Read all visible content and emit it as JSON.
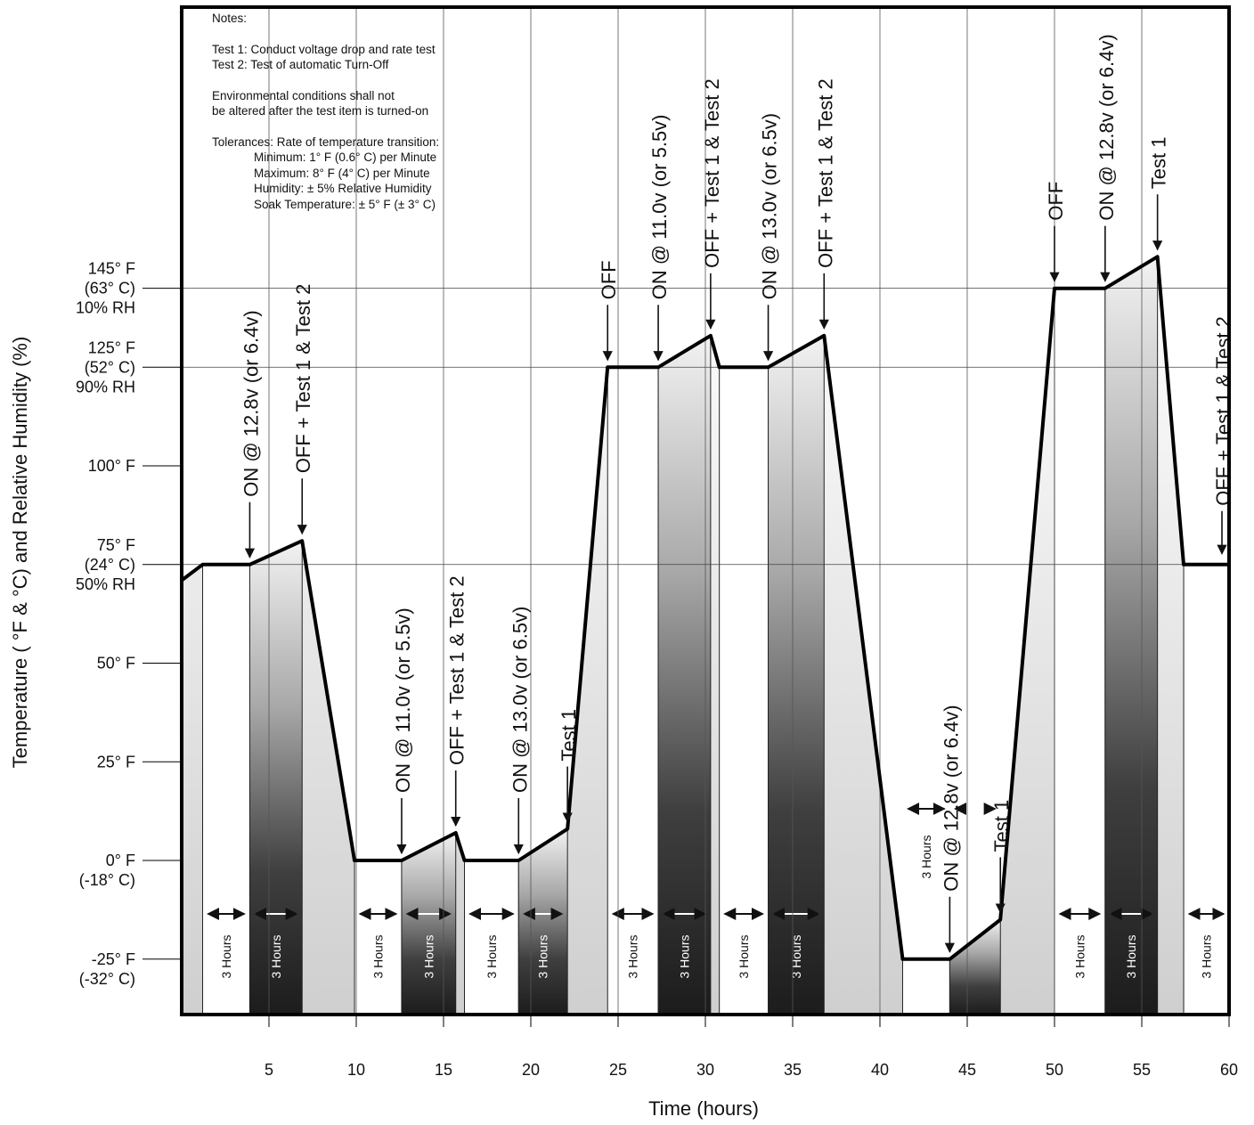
{
  "notes": {
    "title": "Notes:",
    "test1": "Test 1: Conduct voltage drop and rate test",
    "test2": "Test 2: Test of automatic Turn-Off",
    "env1": "Environmental conditions shall not",
    "env2": "be altered after the test item is turned-on",
    "tol_head": "Tolerances: Rate of temperature transition:",
    "tol_min": "Minimum: 1° F (0.6° C) per Minute",
    "tol_max": "Maximum: 8° F (4° C) per Minute",
    "tol_hum": "Humidity: ± 5% Relative Humidity",
    "tol_soak": "Soak Temperature: ± 5° F (± 3° C)"
  },
  "chart_data": {
    "type": "line",
    "xlabel": "Time (hours)",
    "ylabel": "Temperature ( °F & °C) and Relative Humidity (%)",
    "xlim": [
      0,
      60
    ],
    "ylim": [
      -32,
      150
    ],
    "x_ticks": [
      5,
      10,
      15,
      20,
      25,
      30,
      35,
      40,
      45,
      50,
      55,
      60
    ],
    "x_tick_labels": [
      "5",
      "10",
      "15",
      "20",
      "25",
      "30",
      "35",
      "40",
      "45",
      "50",
      "55",
      "60"
    ],
    "y_ticks": [
      {
        "value": 145,
        "lines": [
          "145° F",
          "(63° C)",
          "10% RH"
        ]
      },
      {
        "value": 125,
        "lines": [
          "125° F",
          "(52° C)",
          "90% RH"
        ]
      },
      {
        "value": 100,
        "lines": [
          "100° F"
        ]
      },
      {
        "value": 75,
        "lines": [
          "75° F",
          "(24° C)",
          "50% RH"
        ]
      },
      {
        "value": 50,
        "lines": [
          "50° F"
        ]
      },
      {
        "value": 25,
        "lines": [
          "25° F"
        ]
      },
      {
        "value": 0,
        "lines": [
          "0° F",
          "(-18° C)"
        ]
      },
      {
        "value": -25,
        "lines": [
          "-25° F",
          "(-32° C)"
        ]
      }
    ],
    "series": [
      {
        "x": [
          0,
          1.2,
          3.9,
          6.9,
          9.9,
          12.6,
          15.7,
          16.2,
          19.3,
          22.1,
          24.4,
          27.3,
          30.3,
          30.8,
          33.6,
          36.8,
          41.3,
          44,
          46.9,
          50,
          52.9,
          55.9,
          57.4,
          60
        ],
        "y": [
          71,
          75,
          75,
          81,
          0,
          0,
          7,
          0,
          0,
          8,
          125,
          125,
          133,
          125,
          125,
          133,
          -25,
          -25,
          -15,
          145,
          145,
          153,
          75,
          75
        ]
      }
    ],
    "phases": [
      {
        "x0": 1.2,
        "x1": 3.9,
        "shade": "white",
        "label": "3 Hours"
      },
      {
        "x0": 3.9,
        "x1": 6.9,
        "shade": "dark",
        "label": "3 Hours"
      },
      {
        "x0": 9.9,
        "x1": 12.6,
        "shade": "white",
        "label": "3 Hours"
      },
      {
        "x0": 12.6,
        "x1": 15.7,
        "shade": "dark",
        "label": "3 Hours"
      },
      {
        "x0": 16.2,
        "x1": 19.3,
        "shade": "white",
        "label": "3 Hours"
      },
      {
        "x0": 19.3,
        "x1": 22.1,
        "shade": "dark",
        "label": "3 Hours"
      },
      {
        "x0": 24.4,
        "x1": 27.3,
        "shade": "white",
        "label": "3 Hours"
      },
      {
        "x0": 27.3,
        "x1": 30.3,
        "shade": "dark",
        "label": "3 Hours"
      },
      {
        "x0": 30.8,
        "x1": 33.6,
        "shade": "white",
        "label": "3 Hours"
      },
      {
        "x0": 33.6,
        "x1": 36.8,
        "shade": "dark",
        "label": "3 Hours"
      },
      {
        "x0": 41.3,
        "x1": 44,
        "shade": "white",
        "label": "3 Hours"
      },
      {
        "x0": 44,
        "x1": 46.9,
        "shade": "dark",
        "label": "3 Hours"
      },
      {
        "x0": 50,
        "x1": 52.9,
        "shade": "white",
        "label": "3 Hours"
      },
      {
        "x0": 52.9,
        "x1": 55.9,
        "shade": "dark",
        "label": "3 Hours"
      },
      {
        "x0": 57.4,
        "x1": 60,
        "shade": "white",
        "label": "3 Hours"
      }
    ],
    "annotations": [
      {
        "text": "ON @ 12.8v (or 6.4v)",
        "x": 3.9,
        "y": 75
      },
      {
        "text": "OFF + Test 1 & Test 2",
        "x": 6.9,
        "y": 81
      },
      {
        "text": "ON @ 11.0v (or 5.5v)",
        "x": 12.6,
        "y": 0
      },
      {
        "text": "OFF + Test 1 & Test 2",
        "x": 15.7,
        "y": 7
      },
      {
        "text": "ON @ 13.0v (or 6.5v)",
        "x": 19.3,
        "y": 0
      },
      {
        "text": "Test 1",
        "x": 22.1,
        "y": 8
      },
      {
        "text": "OFF",
        "x": 24.4,
        "y": 125
      },
      {
        "text": "ON @ 11.0v (or 5.5v)",
        "x": 27.3,
        "y": 125
      },
      {
        "text": "OFF + Test 1 & Test 2",
        "x": 30.3,
        "y": 133
      },
      {
        "text": "ON @ 13.0v (or 6.5v)",
        "x": 33.6,
        "y": 125
      },
      {
        "text": "OFF + Test 1 & Test 2",
        "x": 36.8,
        "y": 133
      },
      {
        "text": "ON @ 12.8v (or 6.4v)",
        "x": 44,
        "y": -25
      },
      {
        "text": "Test 1",
        "x": 46.9,
        "y": -15
      },
      {
        "text": "OFF",
        "x": 50,
        "y": 145
      },
      {
        "text": "ON @ 12.8v (or 6.4v)",
        "x": 52.9,
        "y": 145
      },
      {
        "text": "Test 1",
        "x": 55.9,
        "y": 153
      },
      {
        "text": "OFF + Test 1 & Test 2",
        "x": 60,
        "y": 75
      }
    ]
  }
}
